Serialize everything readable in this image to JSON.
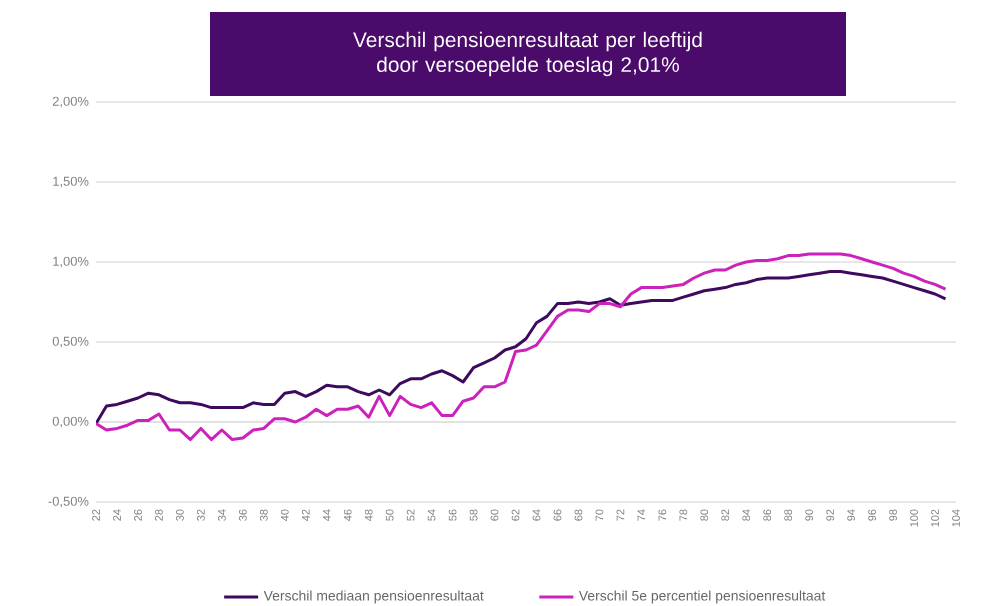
{
  "chart_data": {
    "type": "line",
    "title": "Verschil pensioenresultaat per leeftijd door versoepelde toeslag 2,01%",
    "x": [
      22,
      23,
      24,
      25,
      26,
      27,
      28,
      29,
      30,
      31,
      32,
      33,
      34,
      35,
      36,
      37,
      38,
      39,
      40,
      41,
      42,
      43,
      44,
      45,
      46,
      47,
      48,
      49,
      50,
      51,
      52,
      53,
      54,
      55,
      56,
      57,
      58,
      59,
      60,
      61,
      62,
      63,
      64,
      65,
      66,
      67,
      68,
      69,
      70,
      71,
      72,
      73,
      74,
      75,
      76,
      77,
      78,
      79,
      80,
      81,
      82,
      83,
      84,
      85,
      86,
      87,
      88,
      89,
      90,
      91,
      92,
      93,
      94,
      95,
      96,
      97,
      98,
      99,
      100,
      101,
      102,
      103
    ],
    "series": [
      {
        "name": "Verschil mediaan pensioenresultaat",
        "color": "#3d0a5e",
        "values": [
          -0.01,
          0.1,
          0.11,
          0.13,
          0.15,
          0.18,
          0.17,
          0.14,
          0.12,
          0.12,
          0.11,
          0.09,
          0.09,
          0.09,
          0.09,
          0.12,
          0.11,
          0.11,
          0.18,
          0.19,
          0.16,
          0.19,
          0.23,
          0.22,
          0.22,
          0.19,
          0.17,
          0.2,
          0.17,
          0.24,
          0.27,
          0.27,
          0.3,
          0.32,
          0.29,
          0.25,
          0.34,
          0.37,
          0.4,
          0.45,
          0.47,
          0.52,
          0.62,
          0.66,
          0.74,
          0.74,
          0.75,
          0.74,
          0.75,
          0.77,
          0.73,
          0.74,
          0.75,
          0.76,
          0.76,
          0.76,
          0.78,
          0.8,
          0.82,
          0.83,
          0.84,
          0.86,
          0.87,
          0.89,
          0.9,
          0.9,
          0.9,
          0.91,
          0.92,
          0.93,
          0.94,
          0.94,
          0.93,
          0.92,
          0.91,
          0.9,
          0.88,
          0.86,
          0.84,
          0.82,
          0.8,
          0.77
        ]
      },
      {
        "name": "Verschil 5e percentiel pensioenresultaat",
        "color": "#cc22bb",
        "values": [
          -0.01,
          -0.05,
          -0.04,
          -0.02,
          0.01,
          0.01,
          0.05,
          -0.05,
          -0.05,
          -0.11,
          -0.04,
          -0.11,
          -0.05,
          -0.11,
          -0.1,
          -0.05,
          -0.04,
          0.02,
          0.02,
          0.0,
          0.03,
          0.08,
          0.04,
          0.08,
          0.08,
          0.1,
          0.03,
          0.16,
          0.04,
          0.16,
          0.11,
          0.09,
          0.12,
          0.04,
          0.04,
          0.13,
          0.15,
          0.22,
          0.22,
          0.25,
          0.44,
          0.45,
          0.48,
          0.57,
          0.66,
          0.7,
          0.7,
          0.69,
          0.74,
          0.74,
          0.72,
          0.8,
          0.84,
          0.84,
          0.84,
          0.85,
          0.86,
          0.9,
          0.93,
          0.95,
          0.95,
          0.98,
          1.0,
          1.01,
          1.01,
          1.02,
          1.04,
          1.04,
          1.05,
          1.05,
          1.05,
          1.05,
          1.04,
          1.02,
          1.0,
          0.98,
          0.96,
          0.93,
          0.91,
          0.88,
          0.86,
          0.83
        ]
      }
    ],
    "xlim": [
      22,
      104
    ],
    "xticks": [
      22,
      24,
      26,
      28,
      30,
      32,
      34,
      36,
      38,
      40,
      42,
      44,
      46,
      48,
      50,
      52,
      54,
      56,
      58,
      60,
      62,
      64,
      66,
      68,
      70,
      72,
      74,
      76,
      78,
      80,
      82,
      84,
      86,
      88,
      90,
      92,
      94,
      96,
      98,
      100,
      102,
      104
    ],
    "ylim": [
      -0.5,
      2.0
    ],
    "yticks": [
      {
        "value": -0.5,
        "label": "-0,50%"
      },
      {
        "value": 0,
        "label": "0,00%"
      },
      {
        "value": 0.5,
        "label": "0,50%"
      },
      {
        "value": 1.0,
        "label": "1,00%"
      },
      {
        "value": 1.5,
        "label": "1,50%"
      },
      {
        "value": 2.0,
        "label": "2,00%"
      }
    ],
    "grid": "y",
    "legend": "bottom",
    "marker": "none",
    "line_style": "solid"
  }
}
